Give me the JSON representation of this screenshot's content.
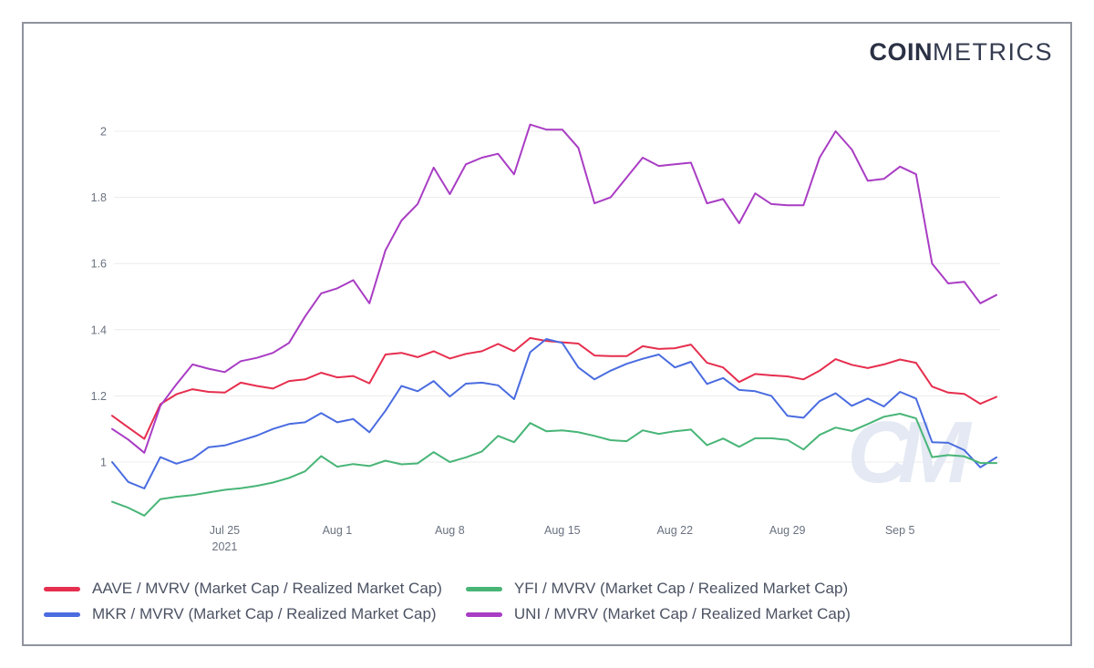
{
  "logo": {
    "bold": "COIN",
    "light": "METRICS"
  },
  "watermark_text": "CM",
  "colors": {
    "border": "#8f939e",
    "gridline": "#ececec",
    "axis_text": "#6a7280",
    "legend_text": "#4b5263",
    "logo_text": "#2b3144",
    "watermark": "#e4e9f4",
    "accent_red": "#e62e4e",
    "accent_blue": "#4a6ce0",
    "accent_green": "#48b577",
    "accent_purple": "#a93dc4"
  },
  "chart_data": {
    "type": "line",
    "title": "",
    "x_unit": "date (daily points)",
    "x_start": "Jul 18, 2021",
    "x_end": "Sep 11, 2021",
    "grid": "horizontal only",
    "legend_position": "bottom-left, 2 columns (AAVE/MKR left, YFI/UNI right)",
    "y_ticks": [
      1,
      1.2,
      1.4,
      1.6,
      1.8,
      2
    ],
    "y_tick_labels": [
      "1",
      "1.2",
      "1.4",
      "1.6",
      "1.8",
      "2"
    ],
    "ylim": [
      0.826,
      2.025
    ],
    "x_tick_labels": [
      {
        "label": "Jul 25",
        "sublabel": "2021",
        "day_index": 7
      },
      {
        "label": "Aug 1",
        "day_index": 14
      },
      {
        "label": "Aug 8",
        "day_index": 21
      },
      {
        "label": "Aug 15",
        "day_index": 28
      },
      {
        "label": "Aug 22",
        "day_index": 35
      },
      {
        "label": "Aug 29",
        "day_index": 42
      },
      {
        "label": "Sep 5",
        "day_index": 49
      }
    ],
    "series": [
      {
        "id": "aave",
        "name": "AAVE / MVRV (Market Cap / Realized Market Cap)",
        "color": "#e62e4e",
        "values": [
          1.14,
          1.105,
          1.07,
          1.175,
          1.205,
          1.22,
          1.212,
          1.21,
          1.24,
          1.23,
          1.222,
          1.245,
          1.25,
          1.27,
          1.256,
          1.26,
          1.238,
          1.325,
          1.33,
          1.317,
          1.335,
          1.313,
          1.327,
          1.335,
          1.357,
          1.335,
          1.375,
          1.366,
          1.362,
          1.358,
          1.322,
          1.32,
          1.32,
          1.35,
          1.342,
          1.344,
          1.355,
          1.3,
          1.286,
          1.242,
          1.266,
          1.262,
          1.259,
          1.25,
          1.276,
          1.311,
          1.294,
          1.284,
          1.295,
          1.31,
          1.3,
          1.228,
          1.21,
          1.206,
          1.176,
          1.197
        ]
      },
      {
        "id": "mkr",
        "name": "MKR / MVRV (Market Cap / Realized Market Cap)",
        "color": "#4a6ce0",
        "values": [
          1.0,
          0.94,
          0.92,
          1.015,
          0.995,
          1.01,
          1.045,
          1.05,
          1.065,
          1.08,
          1.1,
          1.115,
          1.12,
          1.148,
          1.12,
          1.13,
          1.09,
          1.155,
          1.23,
          1.214,
          1.245,
          1.198,
          1.237,
          1.24,
          1.232,
          1.19,
          1.332,
          1.372,
          1.36,
          1.286,
          1.25,
          1.276,
          1.297,
          1.312,
          1.325,
          1.286,
          1.303,
          1.236,
          1.254,
          1.218,
          1.214,
          1.2,
          1.14,
          1.134,
          1.184,
          1.208,
          1.17,
          1.192,
          1.168,
          1.212,
          1.192,
          1.06,
          1.058,
          1.036,
          0.984,
          1.014
        ]
      },
      {
        "id": "yfi",
        "name": "YFI / MVRV (Market Cap / Realized Market Cap)",
        "color": "#48b577",
        "values": [
          0.88,
          0.862,
          0.838,
          0.888,
          0.895,
          0.9,
          0.908,
          0.916,
          0.921,
          0.928,
          0.938,
          0.952,
          0.972,
          1.018,
          0.986,
          0.994,
          0.988,
          1.004,
          0.993,
          0.996,
          1.03,
          1.0,
          1.014,
          1.032,
          1.079,
          1.06,
          1.118,
          1.093,
          1.096,
          1.09,
          1.079,
          1.066,
          1.063,
          1.096,
          1.085,
          1.093,
          1.098,
          1.051,
          1.071,
          1.046,
          1.072,
          1.072,
          1.067,
          1.038,
          1.082,
          1.104,
          1.094,
          1.115,
          1.137,
          1.146,
          1.132,
          1.015,
          1.021,
          1.017,
          0.997,
          0.997
        ]
      },
      {
        "id": "uni",
        "name": "UNI / MVRV (Market Cap / Realized Market Cap)",
        "color": "#a93dc4",
        "values": [
          1.1,
          1.068,
          1.028,
          1.17,
          1.235,
          1.295,
          1.282,
          1.272,
          1.305,
          1.315,
          1.33,
          1.36,
          1.44,
          1.51,
          1.525,
          1.55,
          1.48,
          1.64,
          1.73,
          1.78,
          1.89,
          1.81,
          1.9,
          1.92,
          1.932,
          1.87,
          2.02,
          2.005,
          2.005,
          1.95,
          1.782,
          1.8,
          1.86,
          1.92,
          1.895,
          1.9,
          1.905,
          1.782,
          1.795,
          1.722,
          1.812,
          1.78,
          1.776,
          1.776,
          1.92,
          2.0,
          1.945,
          1.85,
          1.856,
          1.893,
          1.87,
          1.6,
          1.54,
          1.545,
          1.48,
          1.505
        ]
      }
    ]
  }
}
